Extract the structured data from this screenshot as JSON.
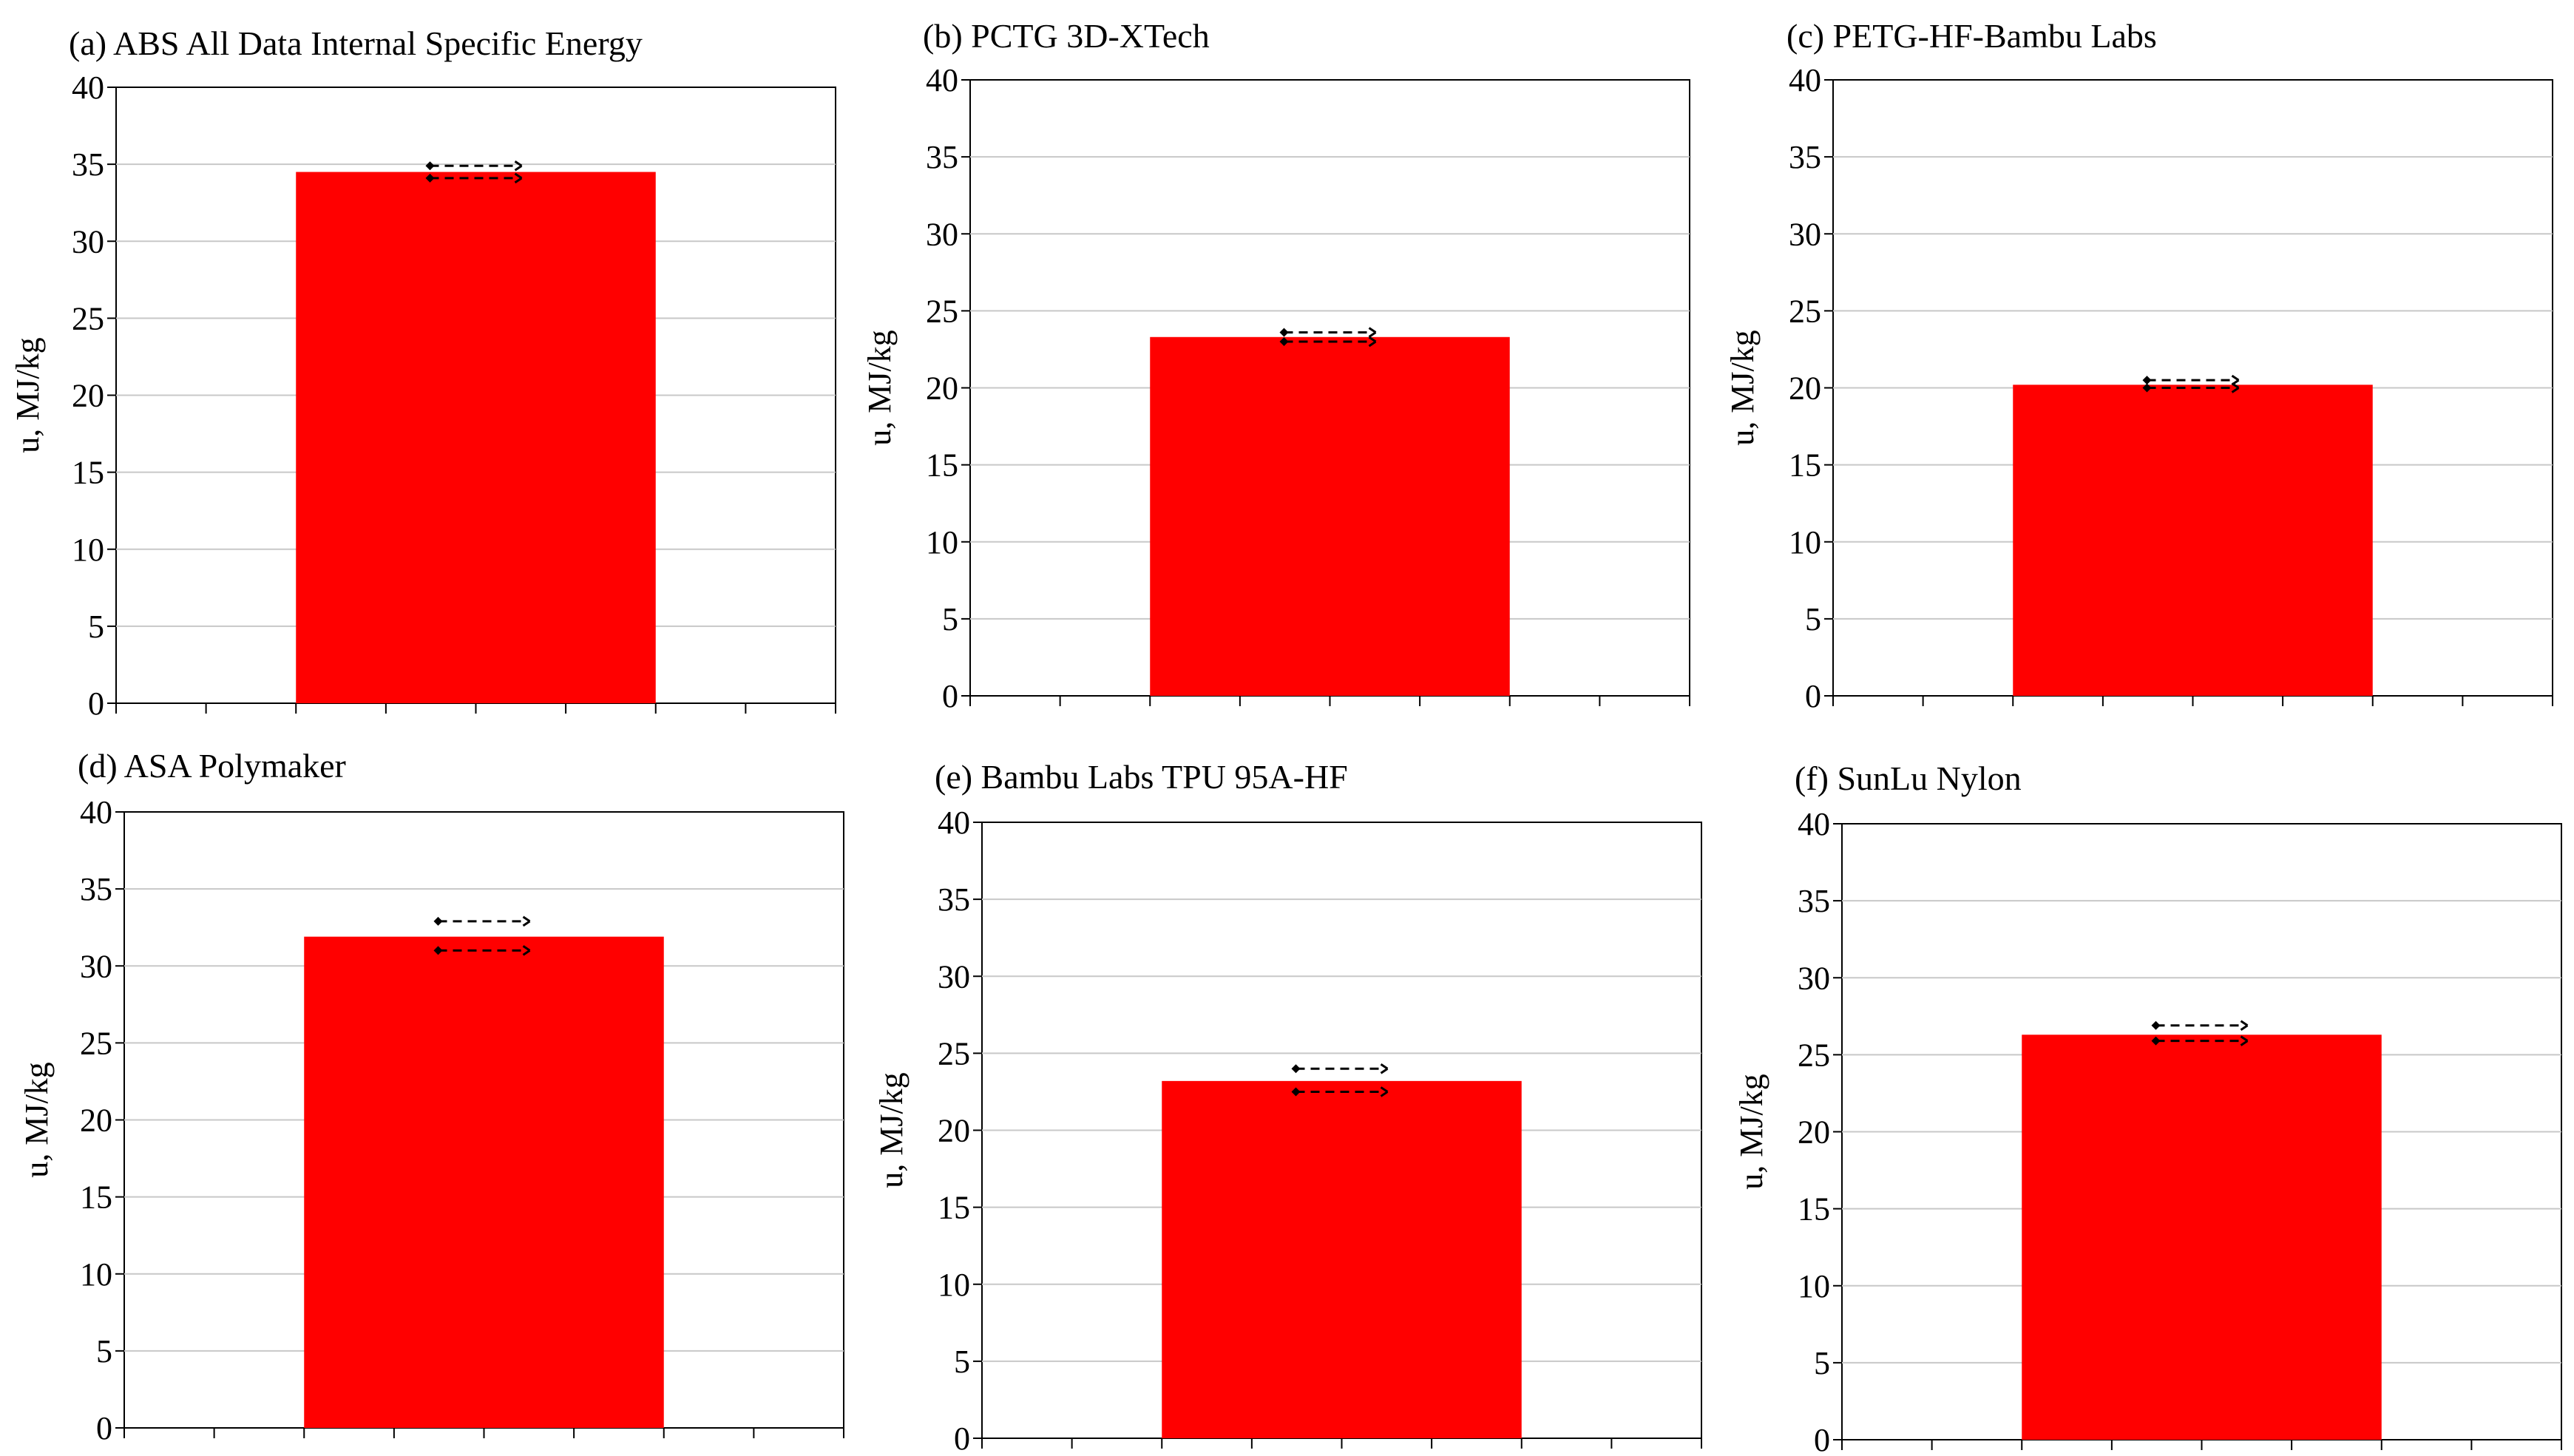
{
  "colors": {
    "bar": "#ff0000",
    "grid": "#c8c8c8",
    "axis": "#000000",
    "error_bar": "#000000"
  },
  "chart_data": [
    {
      "type": "bar",
      "title": "(a) ABS All Data Internal Specific Energy",
      "ylabel": "u, MJ/kg",
      "xlabel": "",
      "ylim": [
        0,
        40
      ],
      "yticks": [
        0,
        5,
        10,
        15,
        20,
        25,
        30,
        35,
        40
      ],
      "ytick_labels": [
        "0",
        "5",
        "10",
        "15",
        "20",
        "25",
        "30",
        "35",
        "40"
      ],
      "grid": true,
      "values": [
        34.5
      ],
      "error_bounds": [
        [
          34.1,
          34.9
        ]
      ]
    },
    {
      "type": "bar",
      "title": "(b) PCTG 3D-XTech",
      "ylabel": "u, MJ/kg",
      "xlabel": "",
      "ylim": [
        0,
        40
      ],
      "yticks": [
        0,
        5,
        10,
        15,
        20,
        25,
        30,
        35,
        40
      ],
      "ytick_labels": [
        "0",
        "5",
        "10",
        "15",
        "20",
        "25",
        "30",
        "35",
        "40"
      ],
      "grid": true,
      "values": [
        23.3
      ],
      "error_bounds": [
        [
          23.0,
          23.6
        ]
      ]
    },
    {
      "type": "bar",
      "title": "(c) PETG-HF-Bambu Labs",
      "ylabel": "u, MJ/kg",
      "xlabel": "",
      "ylim": [
        0,
        40
      ],
      "yticks": [
        0,
        5,
        10,
        15,
        20,
        25,
        30,
        35,
        40
      ],
      "ytick_labels": [
        "0",
        "5",
        "10",
        "15",
        "20",
        "25",
        "30",
        "35",
        "40"
      ],
      "grid": true,
      "values": [
        20.2
      ],
      "error_bounds": [
        [
          20.0,
          20.5
        ]
      ]
    },
    {
      "type": "bar",
      "title": "(d) ASA Polymaker",
      "ylabel": "u, MJ/kg",
      "xlabel": "",
      "ylim": [
        0,
        40
      ],
      "yticks": [
        0,
        5,
        10,
        15,
        20,
        25,
        30,
        35,
        40
      ],
      "ytick_labels": [
        "0",
        "5",
        "10",
        "15",
        "20",
        "25",
        "30",
        "35",
        "40"
      ],
      "grid": true,
      "values": [
        31.9
      ],
      "error_bounds": [
        [
          31.0,
          32.9
        ]
      ]
    },
    {
      "type": "bar",
      "title": "(e) Bambu Labs TPU 95A-HF",
      "ylabel": "u, MJ/kg",
      "xlabel": "",
      "ylim": [
        0,
        40
      ],
      "yticks": [
        0,
        5,
        10,
        15,
        20,
        25,
        30,
        35,
        40
      ],
      "ytick_labels": [
        "0",
        "5",
        "10",
        "15",
        "20",
        "25",
        "30",
        "35",
        "40"
      ],
      "grid": true,
      "values": [
        23.2
      ],
      "error_bounds": [
        [
          22.5,
          24.0
        ]
      ]
    },
    {
      "type": "bar",
      "title": "(f) SunLu Nylon",
      "ylabel": "u, MJ/kg",
      "xlabel": "",
      "ylim": [
        0,
        40
      ],
      "yticks": [
        0,
        5,
        10,
        15,
        20,
        25,
        30,
        35,
        40
      ],
      "ytick_labels": [
        "0",
        "5",
        "10",
        "15",
        "20",
        "25",
        "30",
        "35",
        "40"
      ],
      "grid": true,
      "values": [
        26.3
      ],
      "error_bounds": [
        [
          25.9,
          26.9
        ]
      ]
    }
  ]
}
